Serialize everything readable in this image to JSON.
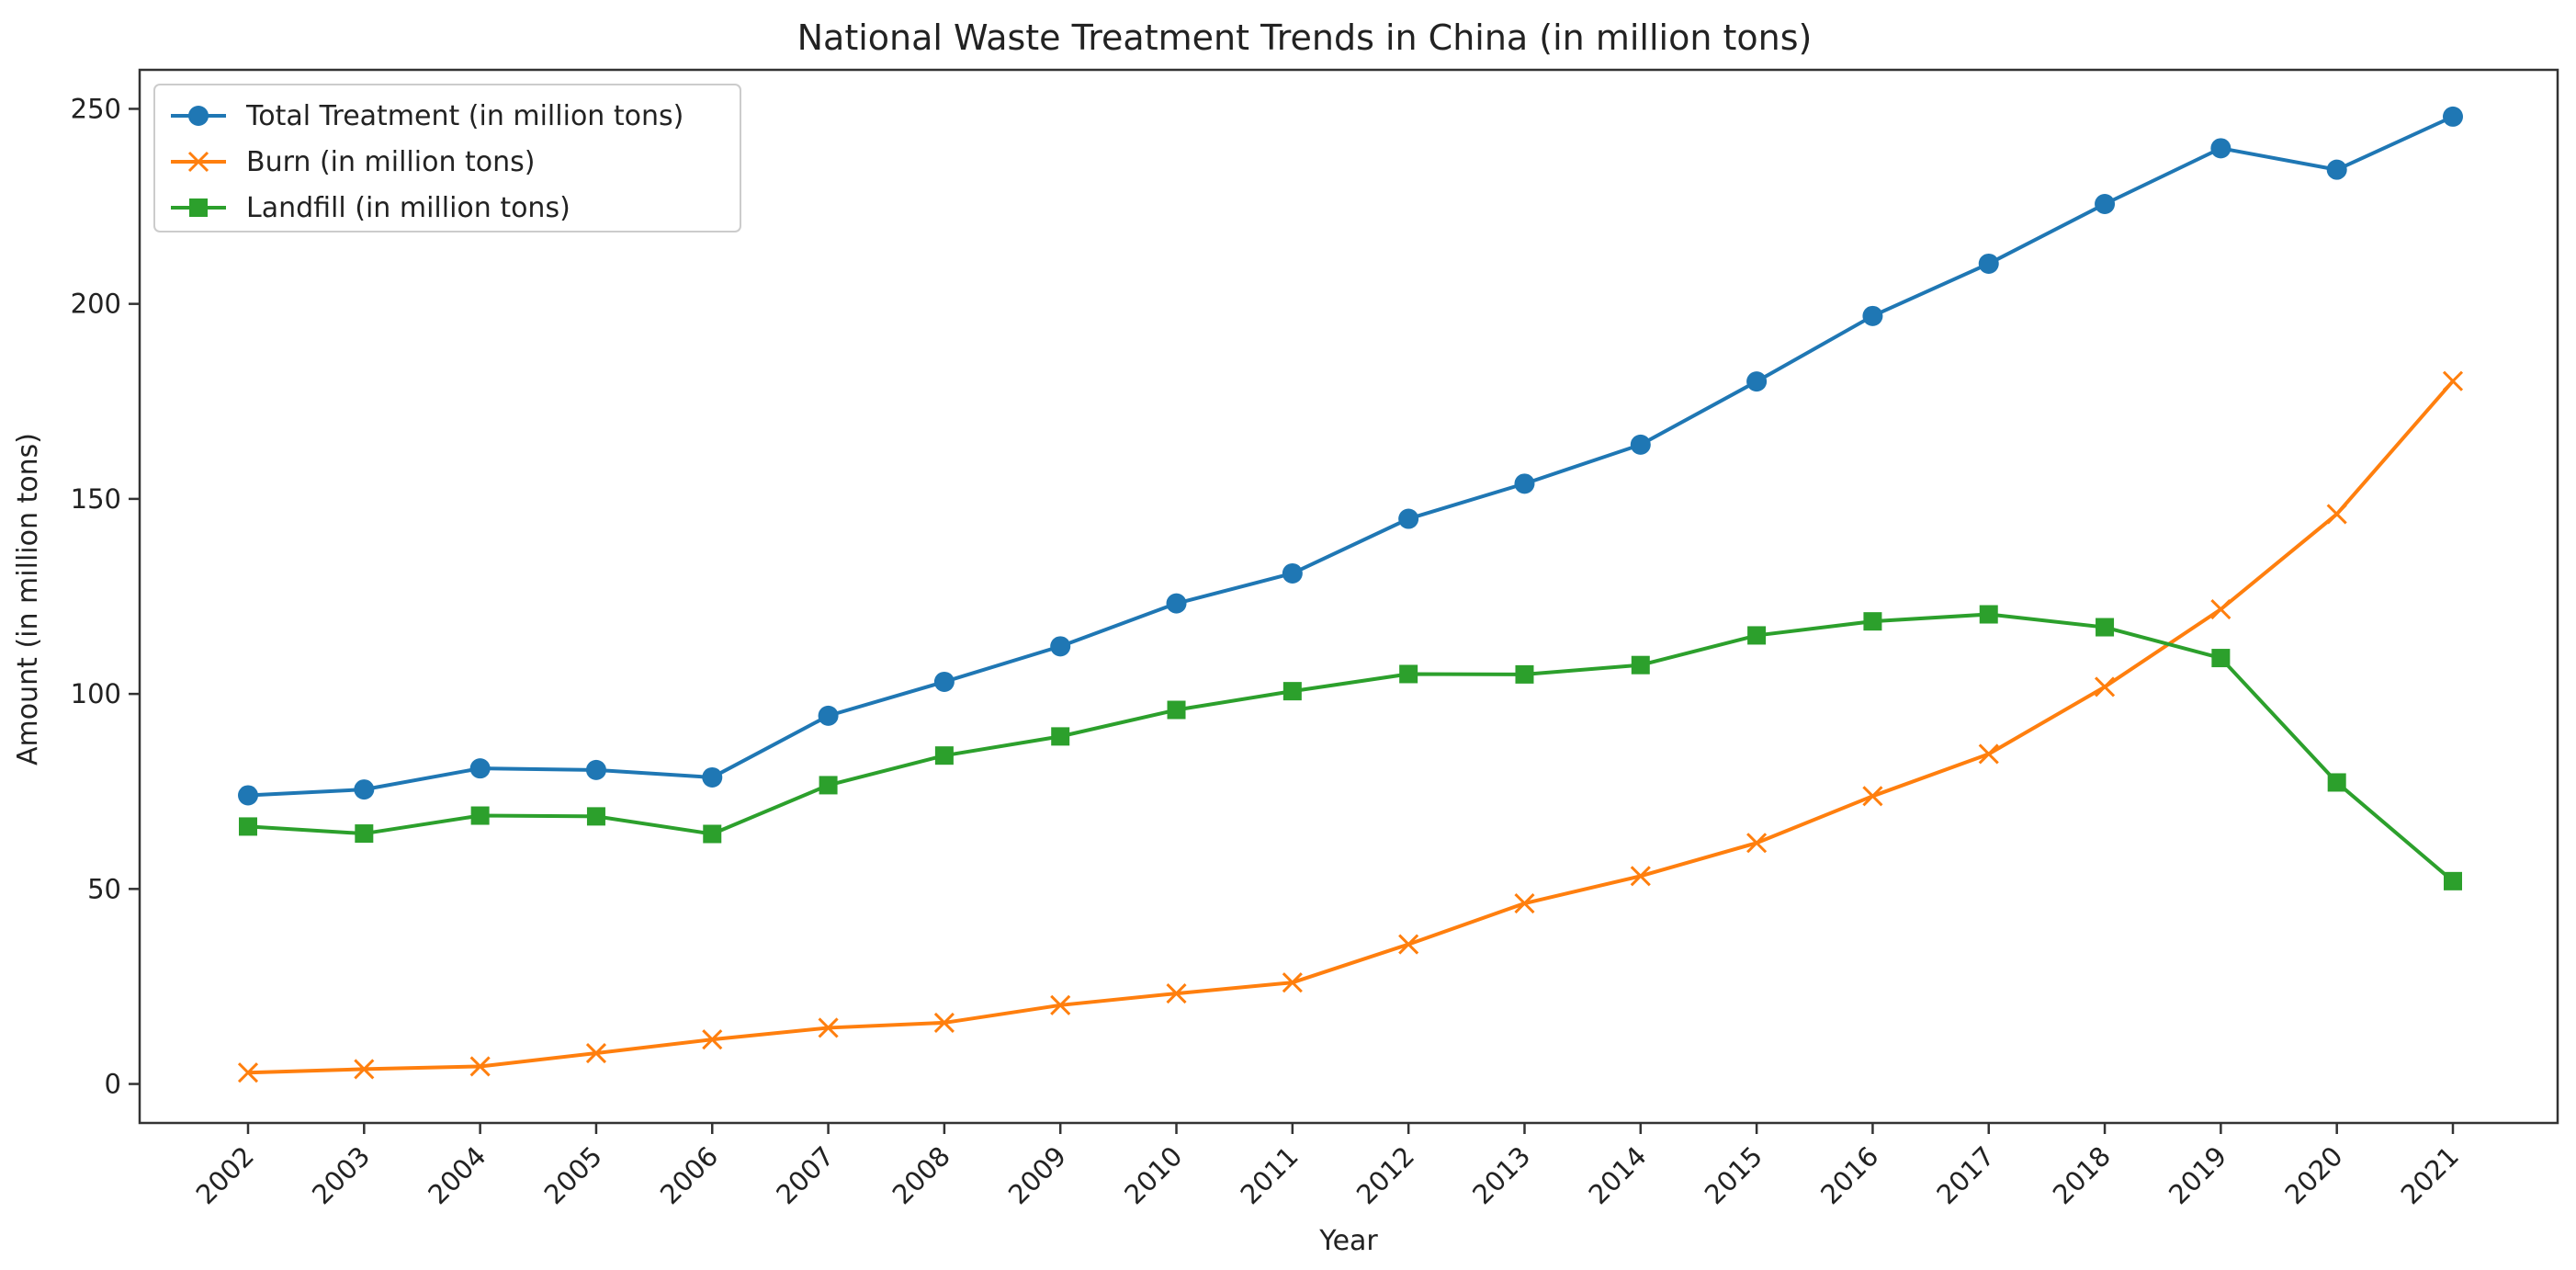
{
  "chart_data": {
    "type": "line",
    "title": "National Waste Treatment Trends in China (in million tons)",
    "xlabel": "Year",
    "ylabel": "Amount (in million tons)",
    "categories": [
      "2002",
      "2003",
      "2004",
      "2005",
      "2006",
      "2007",
      "2008",
      "2009",
      "2010",
      "2011",
      "2012",
      "2013",
      "2014",
      "2015",
      "2016",
      "2017",
      "2018",
      "2019",
      "2020",
      "2021"
    ],
    "ylim": [
      -10,
      260
    ],
    "yticks": [
      0,
      50,
      100,
      150,
      200,
      250
    ],
    "grid": false,
    "legend_position": "top-left",
    "series": [
      {
        "name": "Total Treatment (in million tons)",
        "color": "#1f77b4",
        "marker": "circle",
        "values": [
          74.0,
          75.5,
          80.9,
          80.5,
          78.6,
          94.4,
          103.1,
          112.2,
          123.2,
          130.9,
          144.9,
          153.9,
          163.9,
          180.1,
          196.9,
          210.3,
          225.6,
          239.9,
          234.4,
          248.0
        ]
      },
      {
        "name": "Burn (in million tons)",
        "color": "#ff7f0e",
        "marker": "x",
        "values": [
          2.9,
          3.8,
          4.5,
          7.9,
          11.4,
          14.4,
          15.7,
          20.2,
          23.2,
          26.0,
          35.8,
          46.3,
          53.3,
          61.8,
          73.8,
          84.6,
          101.8,
          121.7,
          146.1,
          180.2
        ]
      },
      {
        "name": "Landfill (in million tons)",
        "color": "#2ca02c",
        "marker": "square",
        "values": [
          66.0,
          64.2,
          68.8,
          68.6,
          64.1,
          76.6,
          84.2,
          89.1,
          95.9,
          100.7,
          105.1,
          105.0,
          107.4,
          115.0,
          118.6,
          120.4,
          117.1,
          109.2,
          77.3,
          52.0
        ]
      }
    ]
  }
}
